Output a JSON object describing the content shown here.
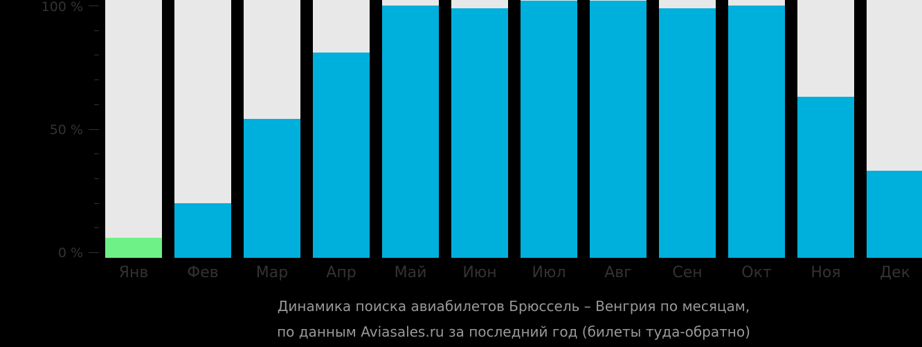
{
  "chart_data": {
    "type": "bar",
    "title": "Динамика поиска авиабилетов Брюссель – Венгрия по месяцам,",
    "subtitle": "по данным Aviasales.ru за последний год (билеты туда-обратно)",
    "categories": [
      "Янв",
      "Фев",
      "Мар",
      "Апр",
      "Май",
      "Июн",
      "Июл",
      "Авг",
      "Сен",
      "Окт",
      "Ноя",
      "Дек"
    ],
    "values": [
      6,
      20,
      54,
      81,
      100,
      99,
      102,
      102,
      99,
      100,
      63,
      33
    ],
    "highlight_index": 0,
    "colors": {
      "bar": "#00b0dc",
      "highlight": "#6ef287",
      "track": "#e8e8e8",
      "background": "#000000"
    },
    "xlabel": "",
    "ylabel": "",
    "ylim": [
      0,
      100
    ],
    "yticks": [
      "0 %",
      "50 %",
      "100 %"
    ],
    "grid": false,
    "legend": null
  }
}
